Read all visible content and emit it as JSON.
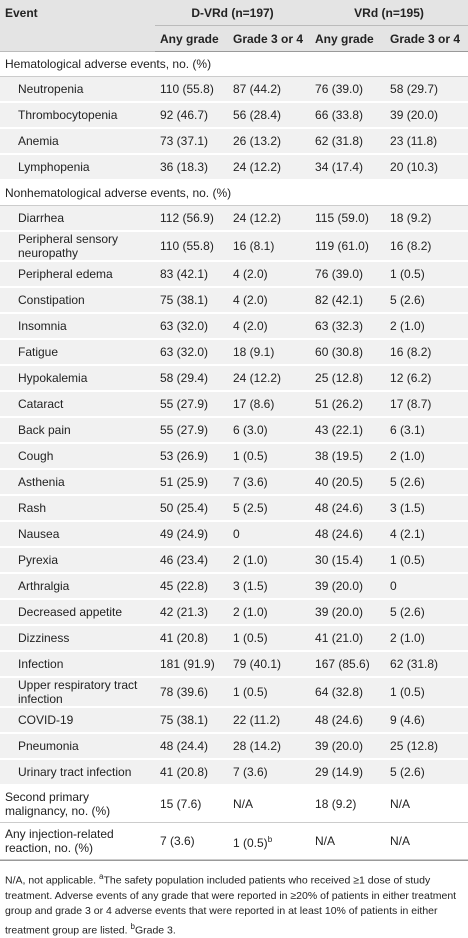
{
  "table": {
    "header": {
      "event": "Event",
      "groups": [
        "D-VRd (n=197)",
        "VRd (n=195)"
      ],
      "subheaders": [
        "Any grade",
        "Grade 3 or 4",
        "Any grade",
        "Grade 3 or 4"
      ]
    },
    "sections": [
      {
        "title": "Hematological adverse events, no. (%)",
        "rows": [
          [
            "Neutropenia",
            "110 (55.8)",
            "87 (44.2)",
            "76 (39.0)",
            "58 (29.7)"
          ],
          [
            "Thrombocytopenia",
            "92 (46.7)",
            "56 (28.4)",
            "66 (33.8)",
            "39 (20.0)"
          ],
          [
            "Anemia",
            "73 (37.1)",
            "26 (13.2)",
            "62 (31.8)",
            "23 (11.8)"
          ],
          [
            "Lymphopenia",
            "36 (18.3)",
            "24 (12.2)",
            "34 (17.4)",
            "20 (10.3)"
          ]
        ]
      },
      {
        "title": "Nonhematological adverse events, no. (%)",
        "rows": [
          [
            "Diarrhea",
            "112 (56.9)",
            "24 (12.2)",
            "115 (59.0)",
            "18 (9.2)"
          ],
          [
            "Peripheral sensory neuropathy",
            "110 (55.8)",
            "16 (8.1)",
            "119 (61.0)",
            "16 (8.2)"
          ],
          [
            "Peripheral edema",
            "83 (42.1)",
            "4 (2.0)",
            "76 (39.0)",
            "1 (0.5)"
          ],
          [
            "Constipation",
            "75 (38.1)",
            "4 (2.0)",
            "82 (42.1)",
            "5 (2.6)"
          ],
          [
            "Insomnia",
            "63 (32.0)",
            "4 (2.0)",
            "63 (32.3)",
            "2 (1.0)"
          ],
          [
            "Fatigue",
            "63 (32.0)",
            "18 (9.1)",
            "60 (30.8)",
            "16 (8.2)"
          ],
          [
            "Hypokalemia",
            "58 (29.4)",
            "24 (12.2)",
            "25 (12.8)",
            "12 (6.2)"
          ],
          [
            "Cataract",
            "55 (27.9)",
            "17 (8.6)",
            "51 (26.2)",
            "17 (8.7)"
          ],
          [
            "Back pain",
            "55 (27.9)",
            "6 (3.0)",
            "43 (22.1)",
            "6 (3.1)"
          ],
          [
            "Cough",
            "53 (26.9)",
            "1 (0.5)",
            "38 (19.5)",
            "2 (1.0)"
          ],
          [
            "Asthenia",
            "51 (25.9)",
            "7 (3.6)",
            "40 (20.5)",
            "5 (2.6)"
          ],
          [
            "Rash",
            "50 (25.4)",
            "5 (2.5)",
            "48 (24.6)",
            "3 (1.5)"
          ],
          [
            "Nausea",
            "49 (24.9)",
            "0",
            "48 (24.6)",
            "4 (2.1)"
          ],
          [
            "Pyrexia",
            "46 (23.4)",
            "2 (1.0)",
            "30 (15.4)",
            "1 (0.5)"
          ],
          [
            "Arthralgia",
            "45 (22.8)",
            "3 (1.5)",
            "39 (20.0)",
            "0"
          ],
          [
            "Decreased appetite",
            "42 (21.3)",
            "2 (1.0)",
            "39 (20.0)",
            "5 (2.6)"
          ],
          [
            "Dizziness",
            "41 (20.8)",
            "1 (0.5)",
            "41 (21.0)",
            "2 (1.0)"
          ],
          [
            "Infection",
            "181 (91.9)",
            "79 (40.1)",
            "167 (85.6)",
            "62 (31.8)"
          ],
          [
            "Upper respiratory tract infection",
            "78 (39.6)",
            "1 (0.5)",
            "64 (32.8)",
            "1 (0.5)"
          ],
          [
            "COVID-19",
            "75 (38.1)",
            "22 (11.2)",
            "48 (24.6)",
            "9 (4.6)"
          ],
          [
            "Pneumonia",
            "48 (24.4)",
            "28 (14.2)",
            "39 (20.0)",
            "25 (12.8)"
          ],
          [
            "Urinary tract infection",
            "41 (20.8)",
            "7 (3.6)",
            "29 (14.9)",
            "5 (2.6)"
          ]
        ]
      }
    ],
    "other_rows": [
      [
        "Second primary malignancy, no. (%)",
        "15 (7.6)",
        "N/A",
        "18 (9.2)",
        "N/A"
      ],
      [
        "Any injection-related reaction, no. (%)",
        "7 (3.6)",
        {
          "text": "1 (0.5)",
          "sup": "b"
        },
        "N/A",
        "N/A"
      ]
    ],
    "footnote": [
      "N/A, not applicable. ",
      "a",
      "The safety population included patients who received ≥1 dose of study treatment. Adverse events of any grade that were reported in ≥20% of patients in either treatment group and grade 3 or 4 adverse events that were reported in at least 10% of patients in either treatment group are listed. ",
      "b",
      "Grade 3."
    ]
  }
}
